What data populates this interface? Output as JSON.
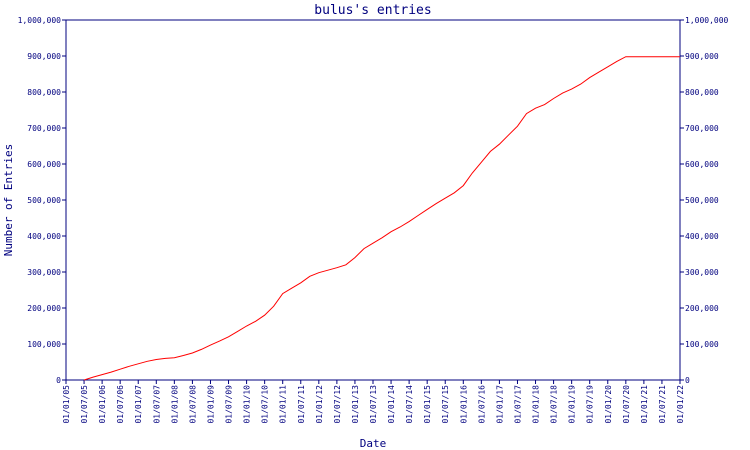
{
  "chart_data": {
    "type": "line",
    "title": "bulus's entries",
    "xlabel": "Date",
    "ylabel": "Number of Entries",
    "ylim": [
      0,
      1000000
    ],
    "yticks": [
      0,
      100000,
      200000,
      300000,
      400000,
      500000,
      600000,
      700000,
      800000,
      900000,
      1000000
    ],
    "ytick_labels": [
      "0",
      "100,000",
      "200,000",
      "300,000",
      "400,000",
      "500,000",
      "600,000",
      "700,000",
      "800,000",
      "900,000",
      "1,000,000"
    ],
    "xticks": [
      "01/01/05",
      "01/07/05",
      "01/01/06",
      "01/07/06",
      "01/01/07",
      "01/07/07",
      "01/01/08",
      "01/07/08",
      "01/01/09",
      "01/07/09",
      "01/01/10",
      "01/07/10",
      "01/01/11",
      "01/07/11",
      "01/01/12",
      "01/07/12",
      "01/01/13",
      "01/07/13",
      "01/01/14",
      "01/07/14",
      "01/01/15",
      "01/07/15",
      "01/01/16",
      "01/07/16",
      "01/01/17",
      "01/07/17",
      "01/01/18",
      "01/07/18",
      "01/01/19",
      "01/07/19",
      "01/01/20",
      "01/07/20",
      "01/01/21",
      "01/07/21",
      "01/01/22"
    ],
    "grid": false,
    "right_axis": true,
    "line_color": "#ff0000",
    "axis_color": "#00007f",
    "series": [
      {
        "x": [
          "01/07/05",
          "01/10/05",
          "01/01/06",
          "01/04/06",
          "01/07/06",
          "01/10/06",
          "01/01/07",
          "01/04/07",
          "01/07/07",
          "01/10/07",
          "01/01/08",
          "01/04/08",
          "01/07/08",
          "01/10/08",
          "01/01/09",
          "01/04/09",
          "01/07/09",
          "01/10/09",
          "01/01/10",
          "01/04/10",
          "01/07/10",
          "01/10/10",
          "01/01/11",
          "01/04/11",
          "01/07/11",
          "01/10/11",
          "01/01/12",
          "01/04/12",
          "01/07/12",
          "01/10/12",
          "01/01/13",
          "01/04/13",
          "01/07/13",
          "01/10/13",
          "01/01/14",
          "01/04/14",
          "01/07/14",
          "01/10/14",
          "01/01/15",
          "01/04/15",
          "01/07/15",
          "01/10/15",
          "01/01/16",
          "01/04/16",
          "01/07/16",
          "01/10/16",
          "01/01/17",
          "01/04/17",
          "01/07/17",
          "01/10/17",
          "01/01/18",
          "01/04/18",
          "01/07/18",
          "01/10/18",
          "01/01/19",
          "01/04/19",
          "01/07/19",
          "01/10/19",
          "01/01/20",
          "01/04/20",
          "01/07/20",
          "01/10/20",
          "01/01/21",
          "01/04/21",
          "01/07/21",
          "01/10/21",
          "01/01/22"
        ],
        "values": [
          0,
          8000,
          15000,
          22000,
          30000,
          38000,
          45000,
          52000,
          57000,
          60000,
          62000,
          68000,
          75000,
          85000,
          97000,
          108000,
          120000,
          135000,
          150000,
          163000,
          180000,
          205000,
          240000,
          255000,
          270000,
          288000,
          298000,
          305000,
          312000,
          320000,
          340000,
          365000,
          380000,
          395000,
          412000,
          425000,
          440000,
          457000,
          474000,
          490000,
          505000,
          520000,
          540000,
          575000,
          605000,
          635000,
          655000,
          680000,
          705000,
          740000,
          755000,
          765000,
          782000,
          797000,
          808000,
          822000,
          840000,
          855000,
          870000,
          885000,
          898000,
          898000,
          898000,
          898000,
          898000,
          898000,
          898000
        ]
      }
    ]
  }
}
